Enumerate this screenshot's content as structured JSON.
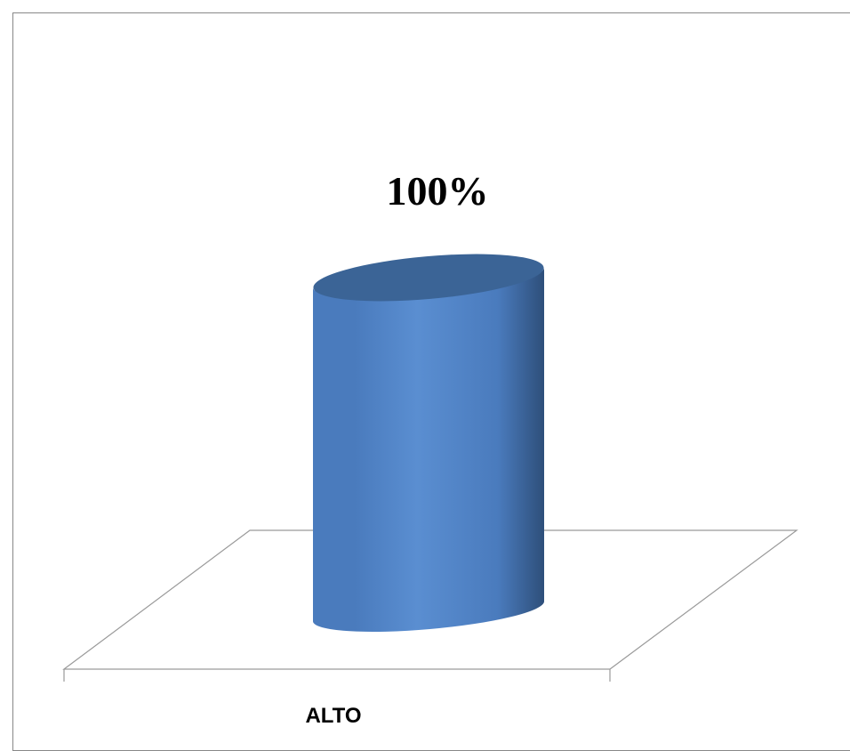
{
  "chart_data": {
    "type": "bar",
    "style": "3d-cylinder",
    "categories": [
      "ALTO"
    ],
    "values": [
      100
    ],
    "data_labels": [
      "100%"
    ],
    "ylim": [
      0,
      100
    ],
    "grid": false,
    "legend": "none",
    "colors": {
      "bar_light": "#5a8ed1",
      "bar_mid": "#4a7bbd",
      "bar_dark": "#2e4f7a",
      "bar_top": "#3b6496",
      "floor_line": "#9a9a9a"
    }
  }
}
